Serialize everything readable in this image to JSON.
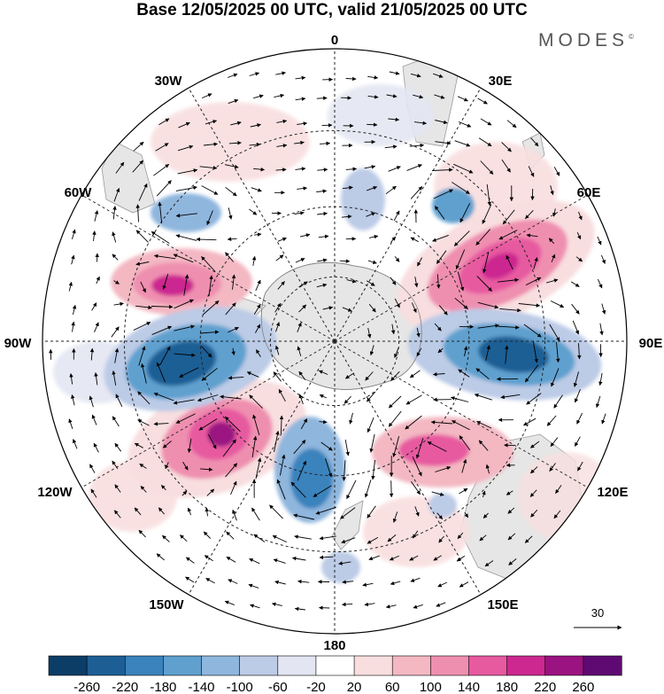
{
  "header": {
    "title": "Base 12/05/2025 00 UTC, valid 21/05/2025 00 UTC",
    "brand": "MODES",
    "brand_mark": "©"
  },
  "map": {
    "projection": "south-polar-stereographic",
    "longitude_labels": {
      "0": "0",
      "30E": "30E",
      "60E": "60E",
      "90E": "90E",
      "120E": "120E",
      "150E": "150E",
      "180": "180",
      "150W": "150W",
      "120W": "120W",
      "90W": "90W",
      "60W": "60W",
      "30W": "30W"
    },
    "reference_vector": {
      "value": "30",
      "label": "30"
    }
  },
  "colorbar": {
    "colors": [
      "#0b3d66",
      "#1d5f95",
      "#3a83bd",
      "#5fa0cf",
      "#8fb6dd",
      "#bccbe6",
      "#e3e5f2",
      "#ffffff",
      "#f8dedf",
      "#f3b8c2",
      "#ef8fb0",
      "#e75aa0",
      "#cc2890",
      "#9b1381",
      "#5f0a72"
    ],
    "tick_labels": [
      "-260",
      "-220",
      "-180",
      "-140",
      "-100",
      "-60",
      "-20",
      "20",
      "60",
      "100",
      "140",
      "180",
      "220",
      "260"
    ]
  }
}
